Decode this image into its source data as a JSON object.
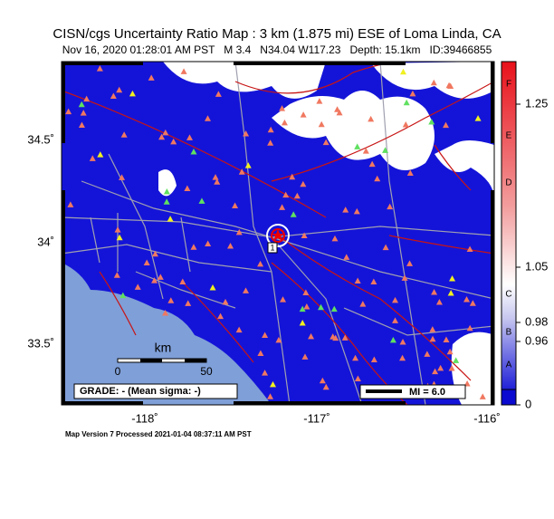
{
  "header": {
    "title": "CISN/cgs Uncertainty Ratio Map : 3 km (1.875 mi) ESE of Loma Linda, CA",
    "subtitle": "Nov 16, 2020 01:28:01 AM PST   M 3.4   N34.04 W117.23   Depth: 15.1km   ID:39466855"
  },
  "map": {
    "lat_labels": [
      "34.5˚",
      "34˚",
      "33.5˚"
    ],
    "lon_labels": [
      "-118˚",
      "-117˚",
      "-116˚"
    ],
    "epicenter_label": "1",
    "scale_bar": {
      "unit": "km",
      "labels": [
        "0",
        "50"
      ]
    },
    "grade_box": "GRADE: - (Mean sigma: -)",
    "mi_box": "MI = 6.0"
  },
  "colorbar": {
    "ticks": [
      "1.25",
      "1.05",
      "0.98",
      "0.96",
      "0"
    ],
    "grades": [
      "F",
      "E",
      "D",
      "C",
      "B",
      "A"
    ]
  },
  "footer": "Map Version 7 Processed 2021-01-04 08:37:11 AM PST"
}
